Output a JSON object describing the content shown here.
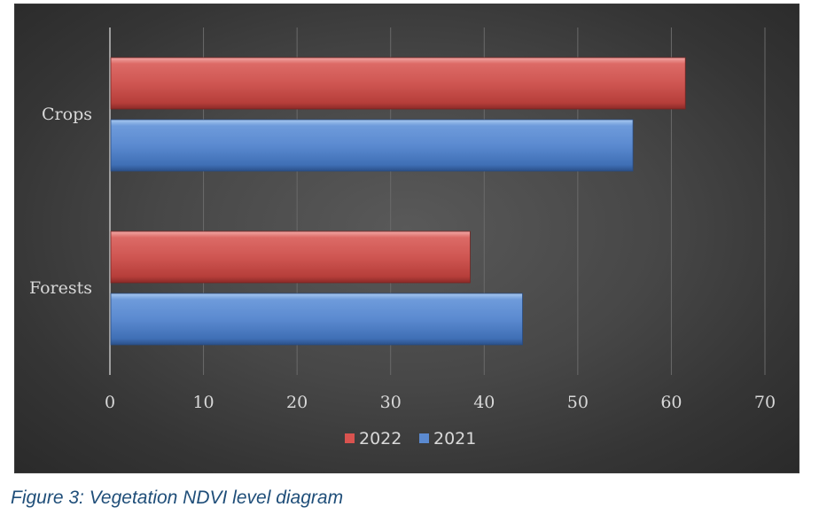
{
  "caption": "Figure 3: Vegetation NDVI level diagram",
  "chart_data": {
    "type": "bar",
    "orientation": "horizontal",
    "title": "",
    "xlabel": "",
    "ylabel": "",
    "categories": [
      "Crops",
      "Forests"
    ],
    "series": [
      {
        "name": "2022",
        "values": [
          61.4,
          38.4
        ],
        "color": "#c0504d"
      },
      {
        "name": "2021",
        "values": [
          55.8,
          44.0
        ],
        "color": "#4f81bd"
      }
    ],
    "xlim": [
      0,
      70
    ],
    "xticks": [
      "0",
      "10",
      "20",
      "30",
      "40",
      "50",
      "60",
      "70"
    ],
    "grid": "vertical",
    "legend": "bottom",
    "background": "#404040"
  }
}
